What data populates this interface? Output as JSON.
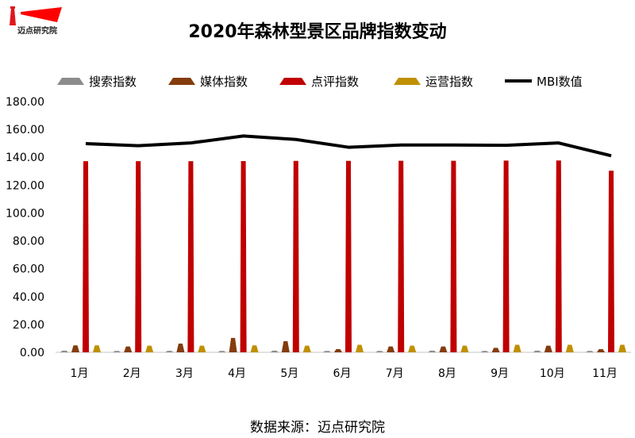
{
  "logo": {
    "text": "迈点研究院"
  },
  "title": "2020年森林型景区品牌指数变动",
  "source": "数据来源：迈点研究院",
  "chart_data": {
    "type": "bar",
    "title": "2020年森林型景区品牌指数变动",
    "categories": [
      "1月",
      "2月",
      "3月",
      "4月",
      "5月",
      "6月",
      "7月",
      "8月",
      "9月",
      "10月",
      "11月"
    ],
    "ylim": [
      0,
      180
    ],
    "yticks": [
      "0.00",
      "20.00",
      "40.00",
      "60.00",
      "80.00",
      "100.00",
      "120.00",
      "140.00",
      "160.00",
      "180.00"
    ],
    "grid": false,
    "legend": "top",
    "series": [
      {
        "name": "搜索指数",
        "type": "bar",
        "color": "#8c8c8c",
        "values": [
          1.2,
          1.0,
          1.1,
          1.0,
          1.2,
          1.0,
          1.0,
          1.2,
          1.0,
          1.2,
          1.0
        ]
      },
      {
        "name": "媒体指数",
        "type": "bar",
        "color": "#843c0c",
        "values": [
          5.0,
          4.2,
          6.3,
          10.3,
          8.0,
          2.3,
          4.2,
          4.2,
          3.2,
          4.8,
          2.3
        ]
      },
      {
        "name": "点评指数",
        "type": "bar",
        "color": "#c00000",
        "values": [
          137.2,
          137.2,
          137.2,
          137.3,
          137.4,
          137.4,
          137.5,
          137.5,
          137.6,
          137.7,
          130.4
        ]
      },
      {
        "name": "运营指数",
        "type": "bar",
        "color": "#bf9000",
        "values": [
          5.0,
          4.8,
          4.8,
          5.0,
          4.8,
          5.4,
          4.8,
          4.8,
          5.4,
          5.4,
          5.4
        ]
      },
      {
        "name": "MBI数值",
        "type": "line",
        "color": "#000000",
        "values": [
          149.8,
          148.3,
          150.3,
          155.3,
          152.8,
          147.2,
          148.8,
          148.8,
          148.6,
          150.3,
          141.1
        ]
      }
    ]
  }
}
